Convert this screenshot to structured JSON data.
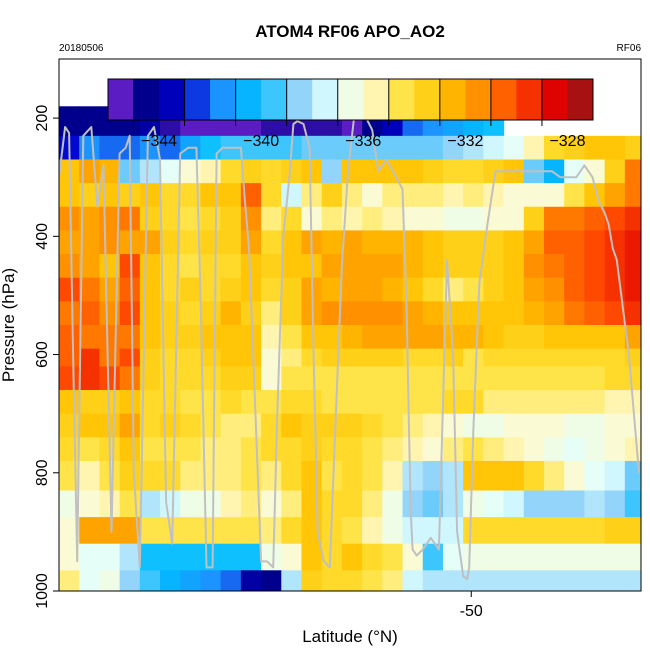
{
  "chart_data": {
    "type": "heatmap",
    "title": "ATOM4 RF06 APO_AO2",
    "date_label": "20180506",
    "flight_label": "RF06",
    "xlabel": "Latitude (°N)",
    "ylabel": "Pressure (hPa)",
    "x_ticks": [
      -50
    ],
    "y_ticks": [
      200,
      400,
      600,
      800,
      1000
    ],
    "xlim": [
      -60.2,
      -45.8
    ],
    "ylim": [
      1000,
      100
    ],
    "colorbar": {
      "ticks": [
        -344,
        -340,
        -336,
        -332,
        -328
      ],
      "range": [
        -346,
        -327
      ],
      "colors": [
        "#8A2BE2",
        "#00008B",
        "#0000CD",
        "#1E90FF",
        "#00BFFF",
        "#87CEFA",
        "#E0FFFF",
        "#FFFACD",
        "#FFE135",
        "#FFC200",
        "#FF8C00",
        "#FF4500",
        "#DD0000",
        "#8B1A1A"
      ]
    },
    "lat_edges": [
      -60.2,
      -59.7,
      -59.2,
      -58.7,
      -58.2,
      -57.7,
      -57.2,
      -56.7,
      -56.2,
      -55.7,
      -55.2,
      -54.7,
      -54.2,
      -53.7,
      -53.2,
      -52.7,
      -52.2,
      -51.7,
      -51.2,
      -50.7,
      -50.2,
      -49.7,
      -49.2,
      -48.7,
      -48.2,
      -47.7,
      -47.2,
      -46.7,
      -46.2,
      -45.8
    ],
    "pressure_rows": [
      {
        "p_top": 180,
        "p_bot": 230,
        "values": [
          -344.5,
          -344.5,
          -344.5,
          -344.5,
          -344,
          -345,
          -345.5,
          -345.5,
          -345.5,
          -345.5,
          -345,
          -345,
          -345,
          -345,
          -345.5,
          -344.5,
          -343.5,
          -342,
          -341.5,
          -341,
          -340.5,
          -340,
          null,
          null,
          null,
          null,
          null,
          null,
          null
        ]
      },
      {
        "p_top": 230,
        "p_bot": 270,
        "values": [
          -343,
          -341.5,
          -342,
          -342,
          -341.5,
          -342,
          -341,
          -340,
          -339.5,
          -339.5,
          -339.5,
          -339.5,
          -339,
          -339,
          -339,
          -339,
          -339,
          -339,
          -339,
          -338.5,
          -338,
          -337.5,
          -337,
          -335.5,
          -334,
          -333.5,
          -333,
          -333,
          -333.5
        ]
      },
      {
        "p_top": 270,
        "p_bot": 310,
        "values": [
          -333,
          -332,
          -332.5,
          -339,
          -338,
          -337,
          -336,
          -335.5,
          -334,
          -333.5,
          -334,
          -333.5,
          -333,
          -338.5,
          -333,
          -333,
          -333,
          -333,
          -333.5,
          -334,
          -334,
          -333.5,
          -333,
          -339,
          -340.5,
          -337,
          -336,
          -333.5,
          -331
        ]
      },
      {
        "p_top": 310,
        "p_bot": 350,
        "values": [
          -333,
          -333.5,
          -333,
          -333.5,
          -333,
          -334,
          -334,
          -333,
          -333,
          -330.5,
          -334,
          -337.5,
          -335,
          -333.5,
          -335,
          -336,
          -335,
          -335,
          -335,
          -335.5,
          -335,
          -335.5,
          -336,
          -336,
          -336,
          -334.5,
          -333,
          -332,
          -331
        ]
      },
      {
        "p_top": 350,
        "p_bot": 390,
        "values": [
          -331.5,
          -332,
          -331.5,
          -331,
          -333.5,
          -334,
          -334.5,
          -334,
          -333.5,
          -331.5,
          -335,
          -334,
          -336,
          -335,
          -335.5,
          -335,
          -335.5,
          -336,
          -336,
          -336.5,
          -336.5,
          -336,
          -336,
          -333.5,
          -331,
          -331,
          -330.5,
          -330,
          -329.5
        ]
      },
      {
        "p_top": 390,
        "p_bot": 430,
        "values": [
          -332,
          -332,
          -331.5,
          -332,
          -332,
          -333.5,
          -334,
          -333.5,
          -333.5,
          -332,
          -334,
          -333,
          -332,
          -332.5,
          -332,
          -332.5,
          -332.5,
          -332.5,
          -333,
          -333.5,
          -333.5,
          -333.5,
          -333,
          -332,
          -330.5,
          -330.5,
          -330,
          -329.5,
          -329
        ]
      },
      {
        "p_top": 430,
        "p_bot": 470,
        "values": [
          -331.5,
          -332,
          -333,
          -330,
          -333,
          -334,
          -334.5,
          -334,
          -334,
          -333,
          -333.5,
          -333,
          -333,
          -332,
          -332,
          -332,
          -332,
          -332.5,
          -333,
          -333.5,
          -333.5,
          -333.5,
          -333,
          -331.5,
          -331,
          -330.5,
          -330,
          -329.5,
          -329
        ]
      },
      {
        "p_top": 470,
        "p_bot": 510,
        "values": [
          -330,
          -331,
          -332,
          -330.5,
          -333,
          -334,
          -333.5,
          -334,
          -333.5,
          -333,
          -334,
          -333.5,
          -332,
          -332.5,
          -332,
          -332,
          -332.5,
          -333,
          -334,
          -335,
          -334.5,
          -333.5,
          -333,
          -332,
          -331.5,
          -330.5,
          -330,
          -329.5,
          -329
        ]
      },
      {
        "p_top": 510,
        "p_bot": 550,
        "values": [
          -331,
          -330.5,
          -331.5,
          -330,
          -333,
          -333.5,
          -334,
          -333.5,
          -332.5,
          -333.5,
          -335,
          -333.5,
          -332,
          -331.5,
          -331.5,
          -331.5,
          -331.5,
          -332,
          -332.5,
          -333,
          -333,
          -333,
          -333,
          -332.5,
          -332,
          -331,
          -330.5,
          -330,
          -329.5
        ]
      },
      {
        "p_top": 550,
        "p_bot": 590,
        "values": [
          -330.5,
          -331,
          -331,
          -331,
          -333,
          -333.5,
          -333.5,
          -333,
          -333,
          -333,
          -335.5,
          -334.5,
          -333,
          -333,
          -332.5,
          -332,
          -332,
          -332,
          -332,
          -332.5,
          -332.5,
          -333,
          -333.5,
          -333.5,
          -333,
          -333,
          -333,
          -333,
          -332
        ]
      },
      {
        "p_top": 590,
        "p_bot": 620,
        "values": [
          -330.5,
          -329.5,
          -331,
          -330,
          -333.5,
          -334,
          -334,
          -333.5,
          -333,
          -333,
          -336,
          -335,
          -334,
          -333.5,
          -333.5,
          -333.5,
          -333.5,
          -334,
          -334,
          -333.5,
          -334.5,
          -334,
          -334,
          -334,
          -334,
          -334,
          -334,
          -334,
          -333.5
        ]
      },
      {
        "p_top": 620,
        "p_bot": 660,
        "values": [
          -330,
          -329.5,
          -330,
          -331,
          -333.5,
          -334,
          -334,
          -334,
          -333.5,
          -333.5,
          -336,
          -334.5,
          -334.5,
          -334.5,
          -334.5,
          -334.5,
          -334.5,
          -334.5,
          -334.5,
          -334.5,
          -334.5,
          -334.5,
          -334.5,
          -334.5,
          -334.5,
          -334.5,
          -334.5,
          -334,
          -334
        ]
      },
      {
        "p_top": 660,
        "p_bot": 700,
        "values": [
          -333,
          -333.5,
          -333.5,
          -333,
          -334,
          -334,
          -334.5,
          -334.5,
          -334,
          -334.5,
          -334.5,
          -334,
          -334,
          -334.5,
          -334.5,
          -334.5,
          -334.5,
          -334.5,
          -334.5,
          -334,
          -334,
          -335,
          -335,
          -335,
          -335,
          -335,
          -335,
          -335.5,
          -335.5
        ]
      },
      {
        "p_top": 700,
        "p_bot": 740,
        "values": [
          -333.5,
          -333,
          -333,
          -332,
          -334,
          -333.5,
          -334,
          -334.5,
          -335,
          -335,
          -334,
          -333,
          -333.5,
          -333.5,
          -333.5,
          -334,
          -334.5,
          -335,
          -335.5,
          -336,
          -336.5,
          -336.5,
          -336,
          -336,
          -336,
          -336.5,
          -336.5,
          -336,
          -336
        ]
      },
      {
        "p_top": 740,
        "p_bot": 780,
        "values": [
          -334,
          -334.5,
          -334,
          -333,
          -334.5,
          -334.5,
          -334.5,
          -335,
          -335,
          -334.5,
          -334,
          -334,
          -333.5,
          -334,
          -334,
          -334.5,
          -335,
          -335.5,
          -336,
          -335,
          -334.5,
          -335,
          -335.5,
          -336,
          -336.5,
          -337,
          -336.5,
          -336,
          -335.5
        ]
      },
      {
        "p_top": 780,
        "p_bot": 830,
        "values": [
          -334.5,
          -335.5,
          -334.5,
          -333.5,
          -334,
          -334,
          -335,
          -335,
          -335,
          -334.5,
          -335,
          -334,
          -333,
          -334.5,
          -334,
          -334.5,
          -335.5,
          -338,
          -338.5,
          -338,
          -333,
          -333,
          -333,
          -334,
          -335,
          -336,
          -337,
          -337.5,
          -339
        ]
      },
      {
        "p_top": 830,
        "p_bot": 875,
        "values": [
          -336.5,
          -336,
          -335.5,
          -334.5,
          -338,
          -337.5,
          -336.5,
          -336.5,
          -335.5,
          -335,
          -336,
          -335,
          -333,
          -334,
          -334,
          -335,
          -336.5,
          -338.5,
          -339,
          -338,
          -336.5,
          -337,
          -337.5,
          -338.5,
          -338.5,
          -338.5,
          -338,
          -338.5,
          -339.5
        ]
      },
      {
        "p_top": 875,
        "p_bot": 920,
        "values": [
          -336,
          -332,
          -332,
          -332,
          -334.5,
          -334.5,
          -334.5,
          -334.5,
          -334.5,
          -334.5,
          -335,
          -334,
          -333,
          -334,
          -334.5,
          -335.5,
          -336.5,
          -337.5,
          -337.5,
          -337.5,
          -334,
          -334,
          -334,
          -334,
          -334,
          -334,
          -334,
          -333.5,
          -333.5
        ]
      },
      {
        "p_top": 920,
        "p_bot": 965,
        "values": [
          -336,
          -337,
          -337,
          -338,
          -340,
          -340,
          -340,
          -340,
          -340,
          -340,
          -336.5,
          -336,
          -333,
          -334,
          -333,
          -334,
          -334.5,
          -336,
          -339.5,
          -337,
          -336.5,
          -336.5,
          -336.5,
          -336.5,
          -336.5,
          -336.5,
          -336.5,
          -336.5,
          -336.5
        ]
      },
      {
        "p_top": 965,
        "p_bot": 1000,
        "values": [
          -335,
          -337,
          -336.5,
          -338.5,
          -339.5,
          -340.5,
          -341,
          -341.5,
          -342,
          -344,
          -344.5,
          -338,
          -333.5,
          -334,
          -334,
          -334.5,
          -335,
          -337.5,
          -338,
          -338,
          -338,
          -338,
          -338,
          -338,
          -338,
          -338,
          -338,
          -338,
          -338
        ]
      }
    ],
    "flight_track": {
      "style": "light-grey-line",
      "color": "#c0c0c0",
      "lat": [
        -60.2,
        -60.05,
        -59.95,
        -59.85,
        -59.75,
        -59.6,
        -59.4,
        -59.25,
        -59.1,
        -58.9,
        -58.7,
        -58.55,
        -58.45,
        -58.35,
        -58.2,
        -58.0,
        -57.85,
        -57.7,
        -57.55,
        -57.4,
        -57.2,
        -57.0,
        -56.8,
        -56.7,
        -56.55,
        -56.4,
        -56.3,
        -56.15,
        -56.0,
        -55.85,
        -55.7,
        -55.6,
        -55.5,
        -55.35,
        -55.2,
        -55.05,
        -54.9,
        -54.8,
        -54.65,
        -54.5,
        -54.4,
        -54.3,
        -54.15,
        -54.0,
        -53.9,
        -53.8,
        -53.65,
        -53.5,
        -53.35,
        -53.2,
        -53.05,
        -52.9,
        -52.75,
        -52.6,
        -52.45,
        -52.3,
        -52.1,
        -51.9,
        -51.7,
        -51.6,
        -51.5,
        -51.45,
        -51.35,
        -51.2,
        -51.0,
        -50.8,
        -50.6,
        -50.45,
        -50.35,
        -50.2,
        -50.1,
        -50.05,
        -49.95,
        -49.8,
        -49.6,
        -49.4,
        -49.2,
        -49.0,
        -48.8,
        -48.6,
        -48.4,
        -48.2,
        -48.0,
        -47.8,
        -47.6,
        -47.4,
        -47.2,
        -47.0,
        -46.85,
        -46.7,
        -46.6,
        -46.5,
        -46.4,
        -46.25,
        -46.1,
        -45.95,
        -45.85
      ],
      "p": [
        300,
        215,
        225,
        600,
        950,
        230,
        215,
        350,
        280,
        900,
        260,
        250,
        230,
        800,
        960,
        230,
        215,
        270,
        850,
        920,
        260,
        250,
        250,
        500,
        960,
        960,
        260,
        250,
        250,
        250,
        250,
        340,
        420,
        680,
        950,
        950,
        960,
        700,
        400,
        300,
        210,
        205,
        210,
        250,
        600,
        900,
        950,
        960,
        700,
        450,
        290,
        200,
        200,
        200,
        220,
        290,
        270,
        295,
        320,
        520,
        860,
        930,
        940,
        930,
        910,
        930,
        440,
        600,
        900,
        975,
        980,
        960,
        730,
        480,
        380,
        290,
        290,
        290,
        290,
        290,
        290,
        290,
        290,
        300,
        300,
        300,
        280,
        300,
        340,
        360,
        380,
        420,
        440,
        520,
        600,
        720,
        800
      ]
    }
  }
}
